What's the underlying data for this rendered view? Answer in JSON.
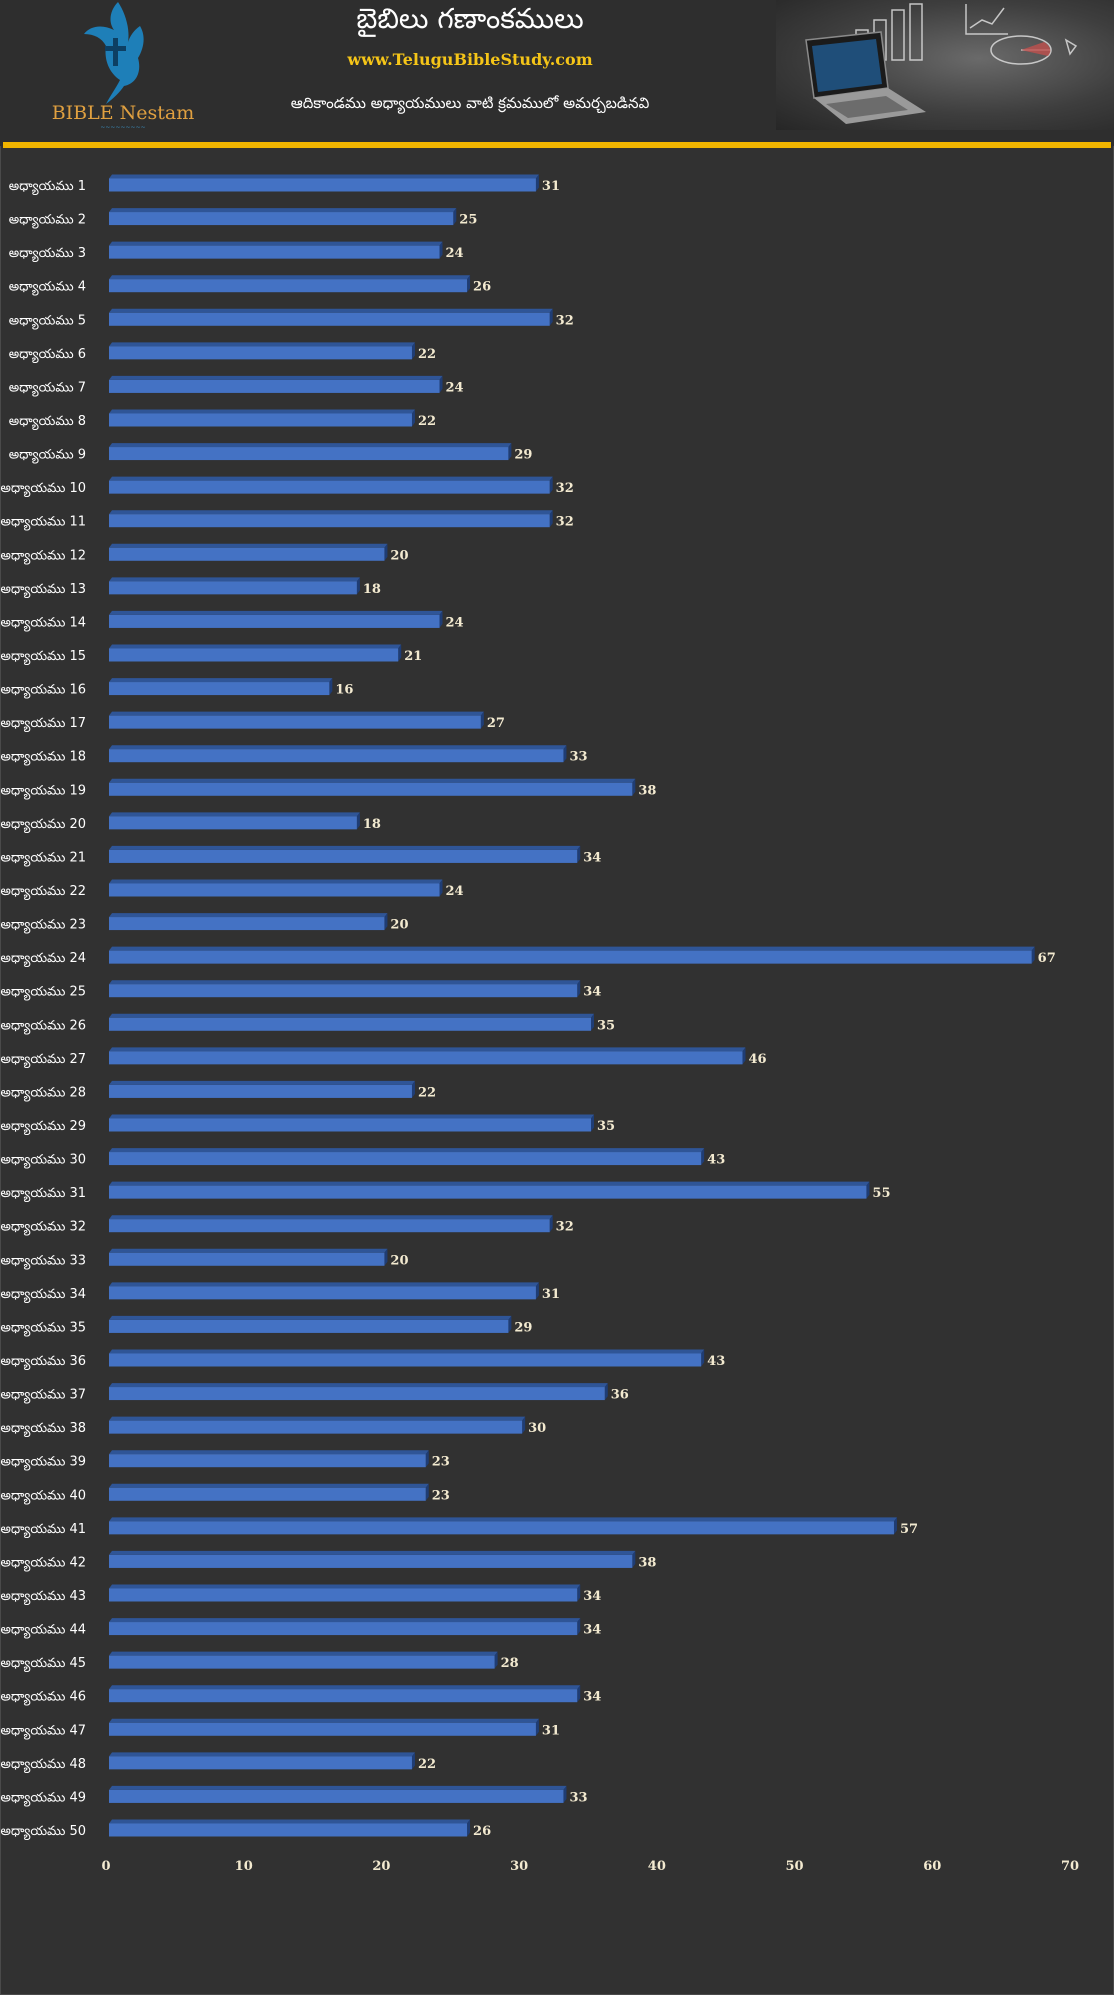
{
  "header": {
    "logo_text": "BIBLE Nestam",
    "title": "బైబిలు గణాంకములు",
    "website": "www.TeluguBibleStudy.com",
    "subtitle": "ఆదికాండము అధ్యాయములు వాటి క్రమములో అమర్చబడినవి"
  },
  "colors": {
    "bar": "#4472c4",
    "bar_top": "#2f5597",
    "accent": "#f0b400",
    "label": "#f3ead0"
  },
  "chart_data": {
    "type": "bar",
    "orientation": "horizontal",
    "title": "",
    "xlabel": "",
    "ylabel": "",
    "xlim": [
      0,
      70
    ],
    "xticks": [
      0,
      10,
      20,
      30,
      40,
      50,
      60,
      70
    ],
    "grid": false,
    "legend": "none",
    "categories": [
      "అధ్యాయము 1",
      "అధ్యాయము 2",
      "అధ్యాయము 3",
      "అధ్యాయము 4",
      "అధ్యాయము 5",
      "అధ్యాయము 6",
      "అధ్యాయము 7",
      "అధ్యాయము 8",
      "అధ్యాయము 9",
      "అధ్యాయము 10",
      "అధ్యాయము 11",
      "అధ్యాయము 12",
      "అధ్యాయము 13",
      "అధ్యాయము 14",
      "అధ్యాయము 15",
      "అధ్యాయము 16",
      "అధ్యాయము 17",
      "అధ్యాయము 18",
      "అధ్యాయము 19",
      "అధ్యాయము 20",
      "అధ్యాయము 21",
      "అధ్యాయము 22",
      "అధ్యాయము 23",
      "అధ్యాయము 24",
      "అధ్యాయము 25",
      "అధ్యాయము 26",
      "అధ్యాయము 27",
      "అధ్యాయము 28",
      "అధ్యాయము 29",
      "అధ్యాయము 30",
      "అధ్యాయము 31",
      "అధ్యాయము 32",
      "అధ్యాయము 33",
      "అధ్యాయము 34",
      "అధ్యాయము 35",
      "అధ్యాయము 36",
      "అధ్యాయము 37",
      "అధ్యాయము 38",
      "అధ్యాయము 39",
      "అధ్యాయము 40",
      "అధ్యాయము 41",
      "అధ్యాయము 42",
      "అధ్యాయము 43",
      "అధ్యాయము 44",
      "అధ్యాయము 45",
      "అధ్యాయము 46",
      "అధ్యాయము 47",
      "అధ్యాయము 48",
      "అధ్యాయము 49",
      "అధ్యాయము 50"
    ],
    "values": [
      31,
      25,
      24,
      26,
      32,
      22,
      24,
      22,
      29,
      32,
      32,
      20,
      18,
      24,
      21,
      16,
      27,
      33,
      38,
      18,
      34,
      24,
      20,
      67,
      34,
      35,
      46,
      22,
      35,
      43,
      55,
      32,
      20,
      31,
      29,
      43,
      36,
      30,
      23,
      23,
      57,
      38,
      34,
      34,
      28,
      34,
      31,
      22,
      33,
      26
    ]
  }
}
